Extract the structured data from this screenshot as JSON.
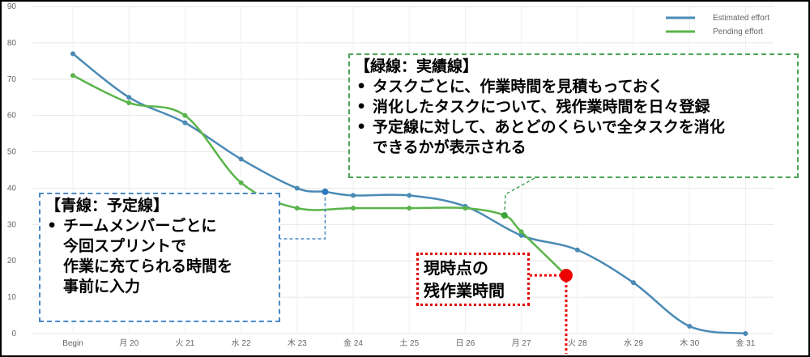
{
  "chart_data": {
    "type": "line",
    "categories": [
      "Begin",
      "月 20",
      "火 21",
      "水 22",
      "木 23",
      "金 24",
      "土 25",
      "日 26",
      "月 27",
      "火 28",
      "水 29",
      "木 30",
      "金 31"
    ],
    "ylim": [
      0,
      90
    ],
    "yticks": [
      0,
      10,
      20,
      30,
      40,
      50,
      60,
      70,
      80,
      90
    ],
    "grid": true,
    "legend_position": "top-right",
    "series": [
      {
        "name": "Estimated effort",
        "color": "#4a8ab5",
        "x": [
          0,
          1,
          2,
          3,
          4,
          4.5,
          5,
          6,
          7,
          8,
          9,
          10,
          11,
          12
        ],
        "values": [
          77,
          65,
          58,
          48,
          40,
          39,
          38,
          38,
          35,
          27,
          23,
          14,
          2,
          0
        ]
      },
      {
        "name": "Pending effort",
        "color": "#5ab44a",
        "x": [
          0,
          1,
          2,
          3,
          4,
          5,
          6,
          7,
          7.7,
          8,
          8.8
        ],
        "values": [
          71,
          63.5,
          60,
          41.5,
          34.5,
          34.5,
          34.5,
          34.5,
          32.5,
          28,
          16
        ]
      }
    ],
    "current_point": {
      "x": 8.8,
      "y": 16,
      "color": "#ee0000"
    }
  },
  "annotations": {
    "green": {
      "title": "【緑線：実績線】",
      "items": [
        "タスクごとに、作業時間を見積もっておく",
        "消化したタスクについて、残作業時間を日々登録",
        "予定線に対して、あとどのくらいで全タスクを消化\nできるかが表示される"
      ],
      "color": "#4aa35a"
    },
    "blue": {
      "title": "【青線：予定線】",
      "items": [
        "チームメンバーごとに\n今回スプリントで\n作業に充てられる時間を\n事前に入力"
      ],
      "color": "#4a89c8"
    },
    "red": {
      "lines": [
        "現時点の",
        "残作業時間"
      ],
      "color": "#e00000"
    }
  }
}
